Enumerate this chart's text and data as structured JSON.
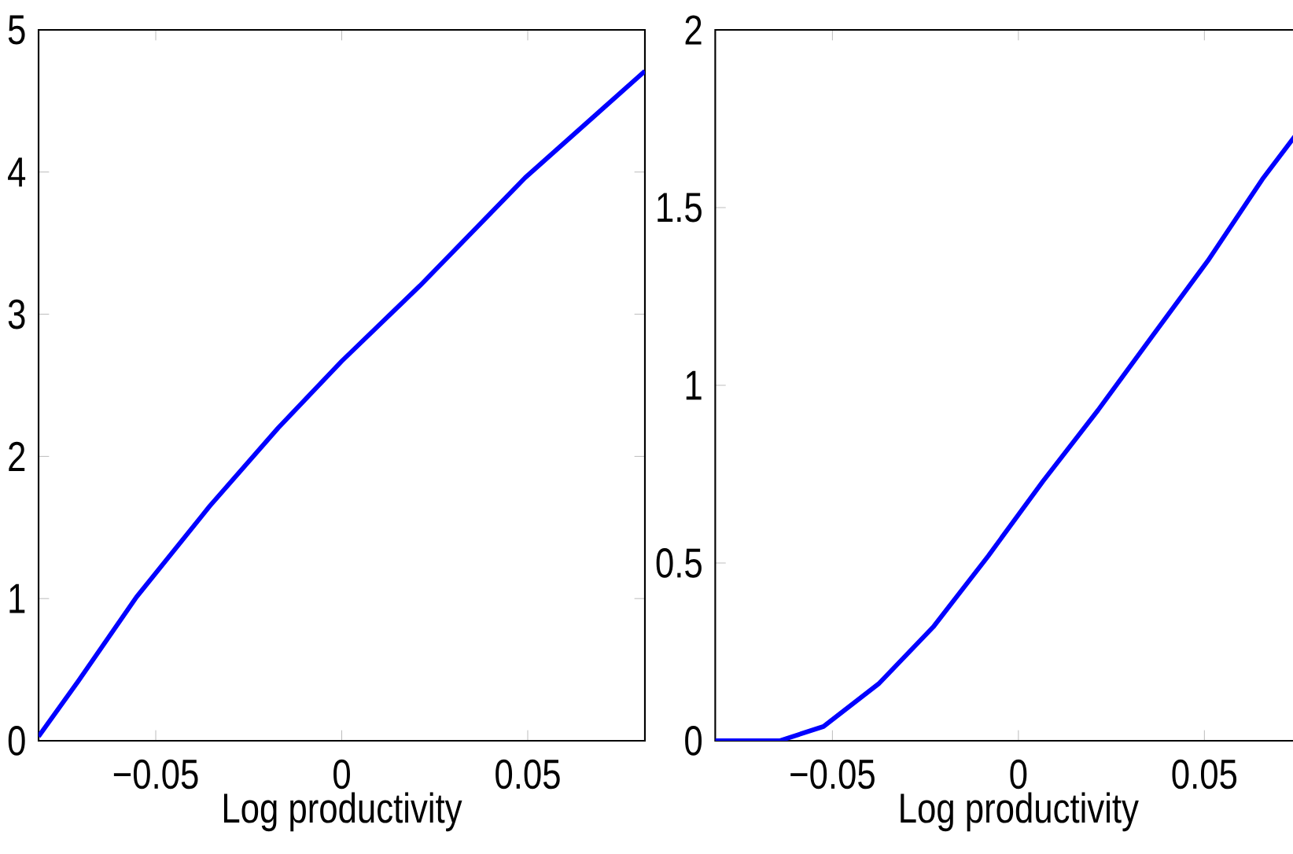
{
  "chart_data": [
    {
      "type": "line",
      "xlabel": "Log productivity",
      "xlim": [
        -0.0815,
        0.0815
      ],
      "ylim": [
        0,
        5
      ],
      "xticks": [
        {
          "value": -0.05,
          "label": "−0.05"
        },
        0,
        0.05
      ],
      "yticks": [
        0,
        1,
        2,
        3,
        4,
        5
      ],
      "series": [
        {
          "color": "#0000ff",
          "x": [
            -0.0815,
            -0.0708,
            -0.0552,
            -0.0355,
            -0.0171,
            0,
            0.021,
            0.0493,
            0.0815
          ],
          "values": [
            0.03,
            0.42,
            1.01,
            1.65,
            2.2,
            2.67,
            3.2,
            3.96,
            4.71
          ]
        }
      ]
    },
    {
      "type": "line",
      "xlabel": "Log productivity",
      "xlim": [
        -0.0815,
        0.0815
      ],
      "ylim": [
        0,
        2
      ],
      "xticks": [
        {
          "value": -0.05,
          "label": "−0.05"
        },
        0,
        0.05
      ],
      "yticks": [
        0,
        0.5,
        1,
        1.5,
        2
      ],
      "series": [
        {
          "color": "#0000ff",
          "x": [
            -0.0815,
            -0.0642,
            -0.0524,
            -0.0376,
            -0.0229,
            -0.0081,
            0.0066,
            0.0214,
            0.0361,
            0.0509,
            0.0656,
            0.0815
          ],
          "values": [
            0,
            0,
            0.04,
            0.16,
            0.32,
            0.52,
            0.73,
            0.93,
            1.14,
            1.35,
            1.58,
            1.8
          ]
        }
      ]
    }
  ]
}
